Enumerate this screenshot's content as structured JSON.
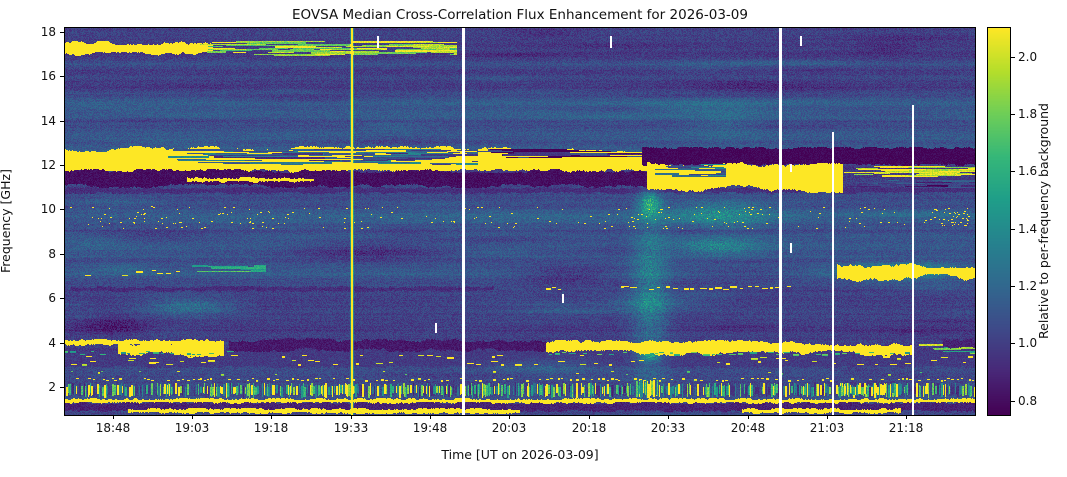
{
  "figure": {
    "background": "#ffffff"
  },
  "chart_data": {
    "type": "heatmap",
    "title": "EOVSA Median Cross-Correlation Flux Enhancement for 2026-03-09",
    "xlabel": "Time [UT on 2026-03-09]",
    "ylabel": "Frequency [GHz]",
    "colorbar_label": "Relative to per-frequency background",
    "colormap": "viridis",
    "colormap_stops": [
      "#440154",
      "#482878",
      "#3e4a89",
      "#31688e",
      "#26828e",
      "#1f9e89",
      "#35b779",
      "#6ece58",
      "#b5de2b",
      "#fde725"
    ],
    "x_range": [
      "18:39",
      "21:31"
    ],
    "y_range_ghz": [
      0.74,
      18.17
    ],
    "value_range": [
      0.75,
      2.1
    ],
    "x_ticks": [
      "18:48",
      "19:03",
      "19:18",
      "19:33",
      "19:48",
      "20:03",
      "20:18",
      "20:33",
      "20:48",
      "21:03",
      "21:18"
    ],
    "y_ticks": [
      2,
      4,
      6,
      8,
      10,
      12,
      14,
      16,
      18
    ],
    "colorbar_ticks": [
      0.8,
      1.0,
      1.2,
      1.4,
      1.6,
      1.8,
      2.0
    ],
    "noise": {
      "base": 1.03,
      "amplitude": 0.09,
      "seed": 7
    },
    "features": [
      {
        "id": "dark-line-10.9",
        "type": "hband",
        "t": [
          "18:39",
          "21:31"
        ],
        "f": [
          10.78,
          10.96
        ],
        "v": 0.93,
        "edge": 0.04
      },
      {
        "id": "backdrop-3ghz",
        "type": "hband",
        "t": [
          "18:39",
          "21:31"
        ],
        "f": [
          2.95,
          3.6
        ],
        "v": 0.98,
        "edge": 0.05
      },
      {
        "id": "dark-patch-4.8-left",
        "type": "cloud",
        "t": [
          "18:39",
          "18:58"
        ],
        "f": [
          4.2,
          5.3
        ],
        "dv": -0.16
      },
      {
        "id": "dark-patch-8.2",
        "type": "cloud",
        "t": [
          "19:20",
          "19:54"
        ],
        "f": [
          7.6,
          8.7
        ],
        "dv": -0.13
      },
      {
        "id": "dark-patch-7-mid",
        "type": "cloud",
        "t": [
          "20:02",
          "20:26"
        ],
        "f": [
          6.5,
          7.6
        ],
        "dv": -0.14
      },
      {
        "id": "dark-patch-8.9-left",
        "type": "cloud",
        "t": [
          "18:39",
          "19:12"
        ],
        "f": [
          8.5,
          9.2
        ],
        "dv": -0.09
      },
      {
        "id": "wisp-5.7-left",
        "type": "cloud",
        "t": [
          "18:50",
          "19:14"
        ],
        "f": [
          5.1,
          6.2
        ],
        "dv": 0.22
      },
      {
        "id": "wisp-5.9-mid",
        "type": "cloud",
        "t": [
          "20:16",
          "20:42"
        ],
        "f": [
          5.3,
          6.3
        ],
        "dv": 0.17
      },
      {
        "id": "wisp-3.0-mid",
        "type": "cloud",
        "t": [
          "19:56",
          "20:24"
        ],
        "f": [
          2.5,
          3.4
        ],
        "dv": 0.13
      },
      {
        "id": "wisp-8.4-right",
        "type": "cloud",
        "t": [
          "20:30",
          "20:54"
        ],
        "f": [
          7.8,
          8.9
        ],
        "dv": 0.27
      },
      {
        "id": "haze-9.8-right",
        "type": "cloud",
        "t": [
          "20:30",
          "20:56"
        ],
        "f": [
          9.0,
          10.6
        ],
        "dv": 0.26
      },
      {
        "id": "haze-13.6",
        "type": "cloud",
        "t": [
          "20:34",
          "20:54"
        ],
        "f": [
          12.9,
          14.8
        ],
        "dv": 0.1
      },
      {
        "id": "haze-9.7-full",
        "type": "cloud",
        "t": [
          "18:39",
          "21:31"
        ],
        "f": [
          9.2,
          10.0
        ],
        "dv": 0.07
      },
      {
        "id": "event-column-20:28",
        "type": "cloud",
        "t": [
          "20:25",
          "20:34"
        ],
        "f": [
          1.0,
          11.2
        ],
        "dv": 0.26
      },
      {
        "id": "event-peak-10ghz",
        "type": "cloud",
        "t": [
          "20:27",
          "20:32"
        ],
        "f": [
          9.6,
          10.9
        ],
        "dv": 0.45
      },
      {
        "id": "event-peak-3.5ghz",
        "type": "cloud",
        "t": [
          "20:27",
          "20:32"
        ],
        "f": [
          3.1,
          3.9
        ],
        "dv": 0.4
      },
      {
        "id": "band-17ghz",
        "type": "hband",
        "t": [
          "18:39",
          "19:07"
        ],
        "f": [
          17.05,
          17.5
        ],
        "v": 2.5,
        "edge": 0.09
      },
      {
        "id": "band-17ghz-streaks",
        "type": "streaks",
        "t": [
          "19:04",
          "19:53"
        ],
        "f": [
          16.95,
          17.6
        ],
        "v": 1.9,
        "density": 0.55
      },
      {
        "id": "band-12ghz-main",
        "type": "hband",
        "t": [
          "18:39",
          "20:29"
        ],
        "f": [
          11.75,
          12.72
        ],
        "v": 2.5,
        "edge": 0.14
      },
      {
        "id": "band-12ghz-holes",
        "type": "streaks",
        "t": [
          "18:58",
          "19:57"
        ],
        "f": [
          12.05,
          12.72
        ],
        "v": 1.15,
        "density": 0.6
      },
      {
        "id": "band-12ghz-holes-dark",
        "type": "streaks",
        "t": [
          "19:55",
          "20:28"
        ],
        "f": [
          12.3,
          12.72
        ],
        "v": 0.84,
        "density": 0.45
      },
      {
        "id": "band-dark-11.4",
        "type": "hband",
        "t": [
          "18:39",
          "20:29"
        ],
        "f": [
          11.12,
          11.72
        ],
        "v": 0.8,
        "edge": 0.07
      },
      {
        "id": "band-dark-12.4-post",
        "type": "hband",
        "t": [
          "20:28",
          "21:31"
        ],
        "f": [
          12.05,
          12.78
        ],
        "v": 0.77,
        "edge": 0.06
      },
      {
        "id": "band-11.5-post",
        "type": "hband",
        "t": [
          "20:29",
          "21:06"
        ],
        "f": [
          10.95,
          12.1
        ],
        "v": 2.5,
        "edge": 0.16
      },
      {
        "id": "band-11.5-post-holes",
        "type": "streaks",
        "t": [
          "20:29",
          "20:44"
        ],
        "f": [
          11.45,
          12.05
        ],
        "v": 1.2,
        "density": 0.5
      },
      {
        "id": "tail-11.6-right",
        "type": "streaks",
        "t": [
          "21:06",
          "21:31"
        ],
        "f": [
          11.35,
          11.95
        ],
        "v": 2.1,
        "density": 0.5
      },
      {
        "id": "tail-11.2-right-dark",
        "type": "streaks",
        "t": [
          "21:06",
          "21:31"
        ],
        "f": [
          10.95,
          11.4
        ],
        "v": 0.95,
        "density": 0.5
      },
      {
        "id": "line-11.3",
        "type": "hline",
        "t": [
          "19:02",
          "19:26"
        ],
        "f": [
          11.28,
          11.42
        ],
        "v": 2.4
      },
      {
        "id": "dotband-9.7",
        "type": "dotband",
        "t": [
          "18:39",
          "21:31"
        ],
        "f": [
          9.05,
          10.15
        ],
        "v": 2.35,
        "rows": 5,
        "density": 0.09
      },
      {
        "id": "dotband-end-cluster",
        "type": "dotband",
        "t": [
          "21:21",
          "21:30"
        ],
        "f": [
          9.25,
          10.05
        ],
        "v": 2.4,
        "rows": 6,
        "density": 0.3
      },
      {
        "id": "dash-7.1-left",
        "type": "dashrow",
        "t": [
          "18:42",
          "19:05"
        ],
        "f": [
          7.0,
          7.3
        ],
        "v": 2.25,
        "density": 0.3
      },
      {
        "id": "streak-7.3-left",
        "type": "streaks",
        "t": [
          "19:02",
          "19:17"
        ],
        "f": [
          7.2,
          7.5
        ],
        "v": 1.6,
        "density": 0.5
      },
      {
        "id": "darkline-6.4",
        "type": "hband",
        "t": [
          "18:40",
          "20:00"
        ],
        "f": [
          6.36,
          6.5
        ],
        "v": 0.92,
        "edge": 0.03
      },
      {
        "id": "dash-6.45",
        "type": "dashrow",
        "t": [
          "20:24",
          "20:56"
        ],
        "f": [
          6.38,
          6.55
        ],
        "v": 2.4,
        "density": 0.72
      },
      {
        "id": "dash-6.45-short",
        "type": "dashrow",
        "t": [
          "20:10",
          "20:13"
        ],
        "f": [
          6.38,
          6.55
        ],
        "v": 2.3,
        "density": 0.9
      },
      {
        "id": "blob-7.2-right-fringe",
        "type": "cloud",
        "t": [
          "21:03",
          "21:31"
        ],
        "f": [
          6.7,
          7.8
        ],
        "dv": 0.3
      },
      {
        "id": "blob-7.2-right",
        "type": "hband",
        "t": [
          "21:05",
          "21:31"
        ],
        "f": [
          6.95,
          7.52
        ],
        "v": 2.45,
        "edge": 0.17
      },
      {
        "id": "line-4.0-left",
        "type": "hline",
        "t": [
          "18:39",
          "19:06"
        ],
        "f": [
          3.93,
          4.1
        ],
        "v": 2.5
      },
      {
        "id": "blob-3.8-left",
        "type": "hband",
        "t": [
          "18:49",
          "19:09"
        ],
        "f": [
          3.55,
          3.97
        ],
        "v": 2.45,
        "edge": 0.14
      },
      {
        "id": "dark-3.9-mid",
        "type": "hband",
        "t": [
          "19:10",
          "20:10"
        ],
        "f": [
          3.7,
          4.12
        ],
        "v": 0.84,
        "edge": 0.08
      },
      {
        "id": "band-3.8-right",
        "type": "hband",
        "t": [
          "20:10",
          "21:19"
        ],
        "f": [
          3.58,
          3.97
        ],
        "v": 2.5,
        "edge": 0.13
      },
      {
        "id": "band-3.8-fade",
        "type": "streaks",
        "t": [
          "21:19",
          "21:31"
        ],
        "f": [
          3.5,
          4.05
        ],
        "v": 1.75,
        "density": 0.55
      },
      {
        "id": "dark-3.9-end",
        "type": "hband",
        "t": [
          "21:25",
          "21:31"
        ],
        "f": [
          3.8,
          4.1
        ],
        "v": 0.88,
        "edge": 0.04
      },
      {
        "id": "dash-3.5-teal-left",
        "type": "dashrow",
        "t": [
          "18:39",
          "19:10"
        ],
        "f": [
          3.46,
          3.62
        ],
        "v": 1.6,
        "density": 0.5
      },
      {
        "id": "dash-3.5-teal-right",
        "type": "dashrow",
        "t": [
          "20:10",
          "21:19"
        ],
        "f": [
          3.44,
          3.58
        ],
        "v": 1.65,
        "density": 0.5
      },
      {
        "id": "dashrow-3.35",
        "type": "dashrow",
        "t": [
          "18:39",
          "21:31"
        ],
        "f": [
          3.26,
          3.42
        ],
        "v": 2.2,
        "density": 0.17
      },
      {
        "id": "dashrow-3.1",
        "type": "dashrow",
        "t": [
          "18:39",
          "21:31"
        ],
        "f": [
          3.0,
          3.2
        ],
        "v": 2.2,
        "density": 0.2
      },
      {
        "id": "dashrow-2.6-sparse",
        "type": "dashrow",
        "t": [
          "18:39",
          "21:31"
        ],
        "f": [
          2.55,
          2.7
        ],
        "v": 1.9,
        "density": 0.06,
        "dash": [
          1,
          3
        ]
      },
      {
        "id": "dotline-2.3",
        "type": "dashrow",
        "t": [
          "18:39",
          "21:31"
        ],
        "f": [
          2.26,
          2.4
        ],
        "v": 2.3,
        "density": 0.5,
        "dash": [
          1,
          3
        ]
      },
      {
        "id": "rfi-bars",
        "type": "vbars",
        "t": [
          "18:39",
          "21:31"
        ],
        "f": [
          1.52,
          2.2
        ],
        "density": 0.8
      },
      {
        "id": "rfi-bars-bright-21:10",
        "type": "vbars",
        "t": [
          "21:05",
          "21:17"
        ],
        "f": [
          1.52,
          2.2
        ],
        "density": 0.85,
        "yellowBias": true
      },
      {
        "id": "event-bars-bright",
        "type": "vbars",
        "t": [
          "20:27",
          "20:31"
        ],
        "f": [
          1.52,
          2.3
        ],
        "density": 0.9,
        "yellowBias": true
      },
      {
        "id": "line-1.38",
        "type": "hline",
        "t": [
          "18:39",
          "21:31"
        ],
        "f": [
          1.32,
          1.46
        ],
        "v": 2.5
      },
      {
        "id": "band-dark-1.1",
        "type": "hband",
        "t": [
          "18:39",
          "21:31"
        ],
        "f": [
          0.95,
          1.3
        ],
        "v": 0.88,
        "edge": 0.04
      },
      {
        "id": "line-0.95-left",
        "type": "hline",
        "t": [
          "18:51",
          "20:05"
        ],
        "f": [
          0.88,
          1.0
        ],
        "v": 2.2
      },
      {
        "id": "line-0.95-right",
        "type": "hline",
        "t": [
          "20:47",
          "21:17"
        ],
        "f": [
          0.88,
          1.0
        ],
        "v": 2.3
      },
      {
        "id": "flare-line-19:33",
        "type": "vline",
        "t": "19:33",
        "f": [
          0.74,
          18.17
        ],
        "v": 2.5,
        "w": 2,
        "halo": true
      },
      {
        "id": "gap-19:54",
        "type": "gap",
        "t": "19:54",
        "f": [
          0.74,
          18.17
        ],
        "w": 3
      },
      {
        "id": "gap-20:54",
        "type": "gap",
        "t": "20:54",
        "f": [
          0.74,
          18.17
        ],
        "w": 3
      },
      {
        "id": "gap-21:04",
        "type": "gap",
        "t": "21:04",
        "f": [
          0.74,
          13.5
        ],
        "w": 2
      },
      {
        "id": "gap-21:19",
        "type": "gap",
        "t": "21:19",
        "f": [
          0.74,
          14.7
        ],
        "w": 2
      },
      {
        "id": "gap-dash-19:38",
        "type": "gap",
        "t": "19:38",
        "f": [
          17.3,
          17.8
        ],
        "w": 2
      },
      {
        "id": "gap-dash-20:22",
        "type": "gap",
        "t": "20:22",
        "f": [
          17.3,
          17.8
        ],
        "w": 2
      },
      {
        "id": "gap-dash-20:58",
        "type": "gap",
        "t": "20:58",
        "f": [
          17.4,
          17.8
        ],
        "w": 2
      },
      {
        "id": "gap-dash-20:56-8ghz",
        "type": "gap",
        "t": "20:56",
        "f": [
          8.1,
          8.5
        ],
        "w": 2
      },
      {
        "id": "gap-dash-20:56-12ghz",
        "type": "gap",
        "t": "20:56",
        "f": [
          11.75,
          12.05
        ],
        "w": 2
      },
      {
        "id": "gap-dash-20:13",
        "type": "gap",
        "t": "20:13",
        "f": [
          5.85,
          6.2
        ],
        "w": 2
      },
      {
        "id": "gap-dash-19:49",
        "type": "gap",
        "t": "19:49",
        "f": [
          4.5,
          4.9
        ],
        "w": 2
      }
    ]
  }
}
